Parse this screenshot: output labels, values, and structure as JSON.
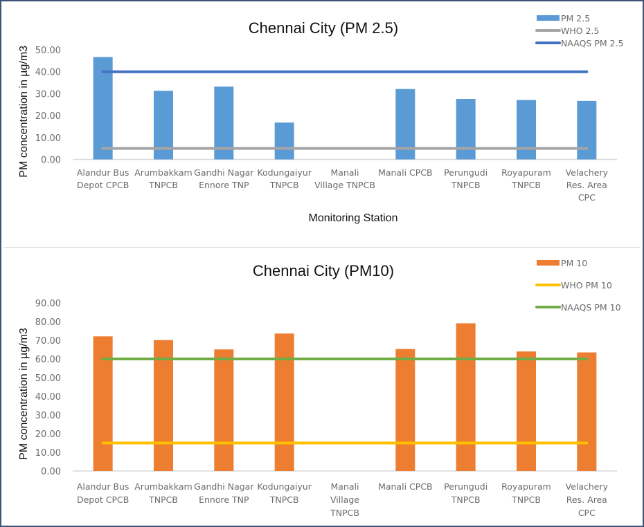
{
  "chart_data": [
    {
      "type": "bar",
      "title": "Chennai City (PM 2.5)",
      "xlabel": "Monitoring Station",
      "ylabel": "PM concentration in µg/m3",
      "ylim": [
        0,
        50
      ],
      "yticks": [
        "0.00",
        "10.00",
        "20.00",
        "30.00",
        "40.00",
        "50.00"
      ],
      "ytick_values": [
        0,
        10,
        20,
        30,
        40,
        50
      ],
      "grid": false,
      "legend_position": "top-right",
      "categories": [
        [
          "Alandur Bus",
          "Depot  CPCB"
        ],
        [
          "Arumbakkam",
          "TNPCB"
        ],
        [
          "Gandhi Nagar",
          "Ennore  TNP"
        ],
        [
          "Kodungaiyur",
          "TNPCB"
        ],
        [
          "Manali",
          "Village TNPCB"
        ],
        [
          "Manali  CPCB"
        ],
        [
          "Perungudi",
          "TNPCB"
        ],
        [
          "Royapuram",
          "TNPCB"
        ],
        [
          "Velachery",
          "Res. Area",
          "CPC"
        ]
      ],
      "series": [
        {
          "name": "PM 2.5",
          "kind": "bar",
          "color": "#5b9bd5",
          "values": [
            46.7,
            31.3,
            33.2,
            16.8,
            null,
            32.1,
            27.6,
            27.1,
            26.7
          ]
        },
        {
          "name": "WHO 2.5",
          "kind": "line",
          "color": "#a5a5a5",
          "values": [
            5,
            5,
            5,
            5,
            5,
            5,
            5,
            5,
            5
          ]
        },
        {
          "name": "NAAQS PM 2.5",
          "kind": "line",
          "color": "#4472c4",
          "values": [
            40,
            40,
            40,
            40,
            40,
            40,
            40,
            40,
            40
          ]
        }
      ]
    },
    {
      "type": "bar",
      "title": "Chennai City (PM10)",
      "xlabel": "",
      "ylabel": "PM concentration in µg/m3",
      "ylim": [
        0,
        90
      ],
      "yticks": [
        "0.00",
        "10.00",
        "20.00",
        "30.00",
        "40.00",
        "50.00",
        "60.00",
        "70.00",
        "80.00",
        "90.00"
      ],
      "ytick_values": [
        0,
        10,
        20,
        30,
        40,
        50,
        60,
        70,
        80,
        90
      ],
      "grid": false,
      "legend_position": "top-right",
      "categories": [
        [
          "Alandur Bus",
          "Depot  CPCB"
        ],
        [
          "Arumbakkam",
          "TNPCB"
        ],
        [
          "Gandhi Nagar",
          "Ennore  TNP"
        ],
        [
          "Kodungaiyur",
          "TNPCB"
        ],
        [
          "Manali",
          "Village",
          "TNPCB"
        ],
        [
          "Manali  CPCB"
        ],
        [
          "Perungudi",
          "TNPCB"
        ],
        [
          "Royapuram",
          "TNPCB"
        ],
        [
          "Velachery",
          "Res. Area",
          "CPC"
        ]
      ],
      "series": [
        {
          "name": "PM 10",
          "kind": "bar",
          "color": "#ed7d31",
          "values": [
            72.1,
            70.1,
            65.1,
            73.6,
            null,
            65.3,
            79.1,
            64.0,
            63.5
          ]
        },
        {
          "name": "WHO PM 10",
          "kind": "line",
          "color": "#ffc000",
          "values": [
            15,
            15,
            15,
            15,
            15,
            15,
            15,
            15,
            15
          ]
        },
        {
          "name": "NAAQS PM 10",
          "kind": "line",
          "color": "#70ad47",
          "values": [
            60,
            60,
            60,
            60,
            60,
            60,
            60,
            60,
            60
          ]
        }
      ]
    }
  ]
}
